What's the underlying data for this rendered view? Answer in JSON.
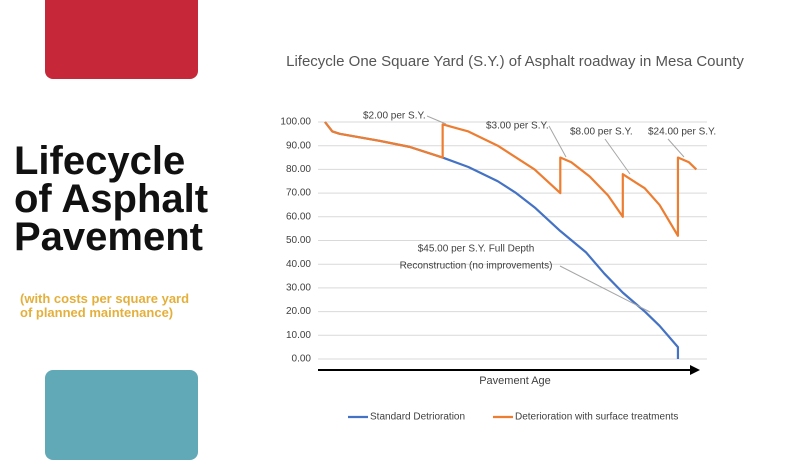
{
  "slide": {
    "title": [
      "Lifecycle",
      "of Asphalt",
      "Pavement"
    ],
    "subtitle": [
      "(with costs per square yard",
      "of planned maintenance)"
    ]
  },
  "chart_data": {
    "type": "line",
    "title": "Lifecycle One Square Yard (S.Y.) of Asphalt roadway in Mesa County",
    "x_label": "Pavement Age",
    "xlim": [
      0,
      102
    ],
    "ylim": [
      0,
      100
    ],
    "yticks": [
      {
        "value": 0,
        "label": "0.00"
      },
      {
        "value": 10,
        "label": "10.00"
      },
      {
        "value": 20,
        "label": "20.00"
      },
      {
        "value": 30,
        "label": "30.00"
      },
      {
        "value": 40,
        "label": "40.00"
      },
      {
        "value": 50,
        "label": "50.00"
      },
      {
        "value": 60,
        "label": "60.00"
      },
      {
        "value": 70,
        "label": "70.00"
      },
      {
        "value": 80,
        "label": "80.00"
      },
      {
        "value": 90,
        "label": "90.00"
      },
      {
        "value": 100,
        "label": "100.00"
      }
    ],
    "grid": true,
    "legend": "bottom",
    "series": [
      {
        "name": "Standard Detrioration",
        "color": "#4472c4",
        "x": [
          0,
          2,
          4,
          15,
          23,
          32,
          39,
          47,
          52,
          57,
          64,
          71,
          76,
          81,
          87,
          91,
          96,
          96
        ],
        "values": [
          100,
          96,
          95,
          92,
          89.5,
          85,
          81,
          75,
          70,
          64,
          54,
          45,
          36,
          28,
          20,
          14,
          5,
          0
        ]
      },
      {
        "name": "Deterioration with surface treatments",
        "color": "#ed7d31",
        "x": [
          0,
          2,
          4,
          15,
          23,
          32,
          32,
          39,
          47,
          57,
          64,
          64,
          67,
          72,
          77,
          81,
          81,
          87,
          91,
          96,
          96,
          99,
          101
        ],
        "values": [
          100,
          96,
          95,
          92,
          89.5,
          85,
          99,
          96,
          90,
          80,
          70,
          85,
          83,
          77,
          69,
          60,
          78,
          72,
          65,
          52,
          85,
          83,
          80
        ]
      }
    ],
    "annotations": [
      [
        "$2.00 per S.Y."
      ],
      [
        "$3.00 per S.Y."
      ],
      [
        "$8.00 per S.Y."
      ],
      [
        "$24.00 per S.Y."
      ],
      [
        "$45.00 per S.Y. Full Depth",
        "Reconstruction (no improvements)"
      ]
    ]
  }
}
